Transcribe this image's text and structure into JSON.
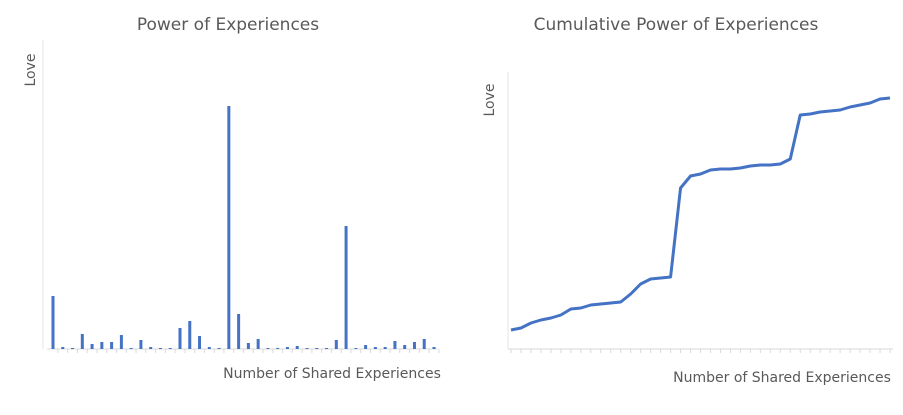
{
  "chart_data": [
    {
      "type": "bar",
      "title": "Power of Experiences",
      "x_label": "Number of Shared Experiences",
      "y_label": "Love",
      "categories": [
        null,
        null,
        null,
        null,
        null,
        null,
        null,
        null,
        null,
        null,
        null,
        null,
        null,
        null,
        null,
        null,
        null,
        null,
        null,
        null,
        null,
        null,
        null,
        null,
        null,
        null,
        null,
        null,
        null,
        null,
        null,
        null,
        null,
        null,
        null,
        null,
        null,
        null,
        null,
        null
      ],
      "values": [
        53,
        2,
        1,
        15,
        5,
        7,
        7,
        14,
        1,
        9,
        2,
        1,
        1,
        21,
        28,
        13,
        2,
        1,
        243,
        35,
        6,
        10,
        1,
        1,
        2,
        3,
        1,
        1,
        1,
        9,
        123,
        1,
        4,
        2,
        2,
        8,
        4,
        7,
        10,
        2
      ],
      "color": "#4472c4",
      "ylim": [
        0,
        280
      ]
    },
    {
      "type": "line",
      "title": "Cumulative Power of Experiences",
      "x_label": "Number of Shared Experiences",
      "y_label": "Love",
      "categories": [
        null,
        null,
        null,
        null,
        null,
        null,
        null,
        null,
        null,
        null,
        null,
        null,
        null,
        null,
        null,
        null,
        null,
        null,
        null,
        null,
        null,
        null,
        null,
        null,
        null,
        null,
        null,
        null,
        null,
        null,
        null,
        null,
        null,
        null,
        null,
        null,
        null,
        null,
        null
      ],
      "values": [
        19,
        21,
        26,
        29,
        31,
        34,
        40,
        41,
        44,
        45,
        46,
        47,
        55,
        65,
        70,
        71,
        72,
        161,
        173,
        175,
        179,
        180,
        180,
        181,
        183,
        184,
        184,
        185,
        190,
        234,
        235,
        237,
        238,
        239,
        242,
        244,
        246,
        250,
        251
      ],
      "color": "#4472c4",
      "ylim": [
        0,
        280
      ]
    }
  ]
}
